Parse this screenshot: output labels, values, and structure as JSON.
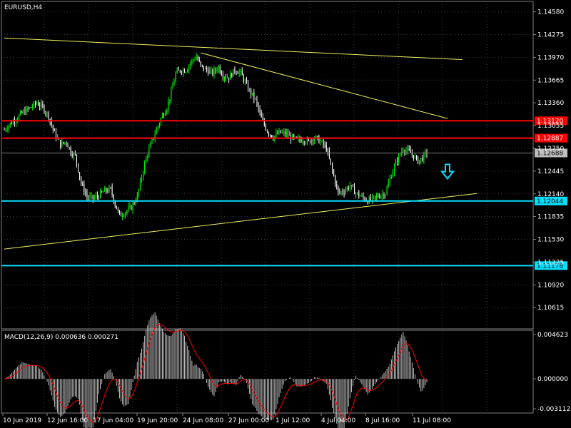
{
  "window": {
    "title": "EURUSD,H4",
    "symbol": "EURUSD",
    "timeframe": "H4"
  },
  "colors": {
    "background": "#000000",
    "grid": "#3a3a3a",
    "bull_candle": "#00ff00",
    "bear_candle": "#ffffff",
    "trendline": "#f0f060",
    "resistance": "#ff0000",
    "support": "#00e0ff",
    "macd_hist": "#c0c0c0",
    "macd_signal": "#ff0000",
    "current_price_bg": "#c0c0c0"
  },
  "indicator": {
    "label": "MACD(12,26,9) 0.000636 0.000271",
    "name": "MACD",
    "params": "12,26,9",
    "main": 0.000636,
    "signal": 0.000271
  },
  "chart_data": [
    {
      "type": "candlestick",
      "title": "EURUSD,H4",
      "ylim": [
        1.1033,
        1.1472
      ],
      "price_ticks": [
        "1.14580",
        "1.14275",
        "1.13970",
        "1.13665",
        "1.13360",
        "1.13055",
        "1.12750",
        "1.12445",
        "1.12140",
        "1.11835",
        "1.11530",
        "1.11225",
        "1.10920",
        "1.10615"
      ],
      "x_ticks": [
        "10 Jun 2019",
        "12 Jun 16:00",
        "17 Jun 04:00",
        "19 Jun 20:00",
        "24 Jun 08:00",
        "27 Jun 00:00",
        "1 Jul 12:00",
        "4 Jul 04:00",
        "8 Jul 16:00",
        "11 Jul 08:00"
      ],
      "price_path": [
        [
          0,
          1.13
        ],
        [
          5,
          1.131
        ],
        [
          12,
          1.1322
        ],
        [
          18,
          1.133
        ],
        [
          22,
          1.1336
        ],
        [
          26,
          1.133
        ],
        [
          30,
          1.1318
        ],
        [
          34,
          1.1295
        ],
        [
          38,
          1.128
        ],
        [
          42,
          1.1284
        ],
        [
          45,
          1.127
        ],
        [
          48,
          1.1265
        ],
        [
          52,
          1.1228
        ],
        [
          56,
          1.121
        ],
        [
          60,
          1.1208
        ],
        [
          64,
          1.1212
        ],
        [
          68,
          1.1218
        ],
        [
          72,
          1.122
        ],
        [
          75,
          1.12
        ],
        [
          78,
          1.1185
        ],
        [
          82,
          1.119
        ],
        [
          86,
          1.1196
        ],
        [
          90,
          1.121
        ],
        [
          93,
          1.1238
        ],
        [
          96,
          1.1262
        ],
        [
          100,
          1.1285
        ],
        [
          103,
          1.13
        ],
        [
          106,
          1.1315
        ],
        [
          110,
          1.133
        ],
        [
          113,
          1.135
        ],
        [
          116,
          1.1375
        ],
        [
          119,
          1.138
        ],
        [
          123,
          1.138
        ],
        [
          126,
          1.139
        ],
        [
          130,
          1.1398
        ],
        [
          133,
          1.1385
        ],
        [
          137,
          1.138
        ],
        [
          141,
          1.1376
        ],
        [
          145,
          1.1384
        ],
        [
          148,
          1.1373
        ],
        [
          152,
          1.137
        ],
        [
          156,
          1.138
        ],
        [
          160,
          1.1376
        ],
        [
          165,
          1.1355
        ],
        [
          170,
          1.134
        ],
        [
          174,
          1.1315
        ],
        [
          178,
          1.1298
        ],
        [
          182,
          1.129
        ],
        [
          186,
          1.1296
        ],
        [
          190,
          1.1295
        ],
        [
          194,
          1.129
        ],
        [
          198,
          1.1286
        ],
        [
          202,
          1.1287
        ],
        [
          206,
          1.1284
        ],
        [
          210,
          1.129
        ],
        [
          214,
          1.1284
        ],
        [
          218,
          1.1275
        ],
        [
          222,
          1.1245
        ],
        [
          226,
          1.1215
        ],
        [
          230,
          1.1218
        ],
        [
          234,
          1.1225
        ],
        [
          238,
          1.1215
        ],
        [
          242,
          1.121
        ],
        [
          246,
          1.1205
        ],
        [
          250,
          1.1208
        ],
        [
          254,
          1.1212
        ],
        [
          258,
          1.1215
        ],
        [
          262,
          1.124
        ],
        [
          266,
          1.126
        ],
        [
          270,
          1.1275
        ],
        [
          274,
          1.127
        ],
        [
          277,
          1.1265
        ],
        [
          280,
          1.1258
        ],
        [
          283,
          1.1262
        ],
        [
          286,
          1.127
        ]
      ],
      "resistance_levels": [
        {
          "price": 1.1312,
          "label": "1.13120"
        },
        {
          "price": 1.12887,
          "label": "1.12887"
        }
      ],
      "support_levels": [
        {
          "price": 1.12044,
          "label": "1.12044"
        },
        {
          "price": 1.11178,
          "label": "1.11178"
        }
      ],
      "current_price": {
        "price": 1.12688,
        "label": "1.12688"
      },
      "trendlines": [
        {
          "from": [
            0,
            1.1423
          ],
          "to": [
            310,
            1.1394
          ]
        },
        {
          "from": [
            133,
            1.1403
          ],
          "to": [
            300,
            1.1315
          ]
        },
        {
          "from": [
            0,
            1.114
          ],
          "to": [
            320,
            1.12145
          ]
        }
      ],
      "annotation": {
        "type": "down-arrow",
        "at": [
          300,
          1.1242
        ]
      }
    },
    {
      "type": "bar",
      "title": "MACD(12,26,9) 0.000636 0.000271",
      "ylim": [
        -0.003112,
        0.004623
      ],
      "y_ticks": [
        "0.004623",
        "0.000000",
        "-0.003112"
      ]
    }
  ]
}
